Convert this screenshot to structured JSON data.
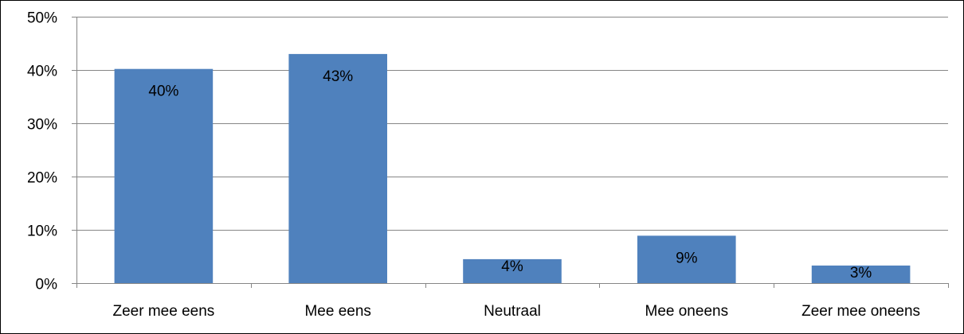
{
  "chart_data": {
    "type": "bar",
    "categories": [
      "Zeer mee eens",
      "Mee eens",
      "Neutraal",
      "Mee oneens",
      "Zeer mee oneens"
    ],
    "values": [
      40.2,
      43.0,
      4.5,
      8.9,
      3.3
    ],
    "data_labels": [
      "40%",
      "43%",
      "4%",
      "9%",
      "3%"
    ],
    "ylim": [
      0,
      50
    ],
    "yticks": [
      0,
      10,
      20,
      30,
      40,
      50
    ],
    "ytick_labels": [
      "0%",
      "10%",
      "20%",
      "30%",
      "40%",
      "50%"
    ],
    "grid": true,
    "legend": false,
    "title": "",
    "xlabel": "",
    "ylabel": "",
    "colors": {
      "bar": "#4f81bd",
      "grid": "#868686",
      "axis": "#868686",
      "border": "#000000",
      "text": "#000000"
    }
  }
}
